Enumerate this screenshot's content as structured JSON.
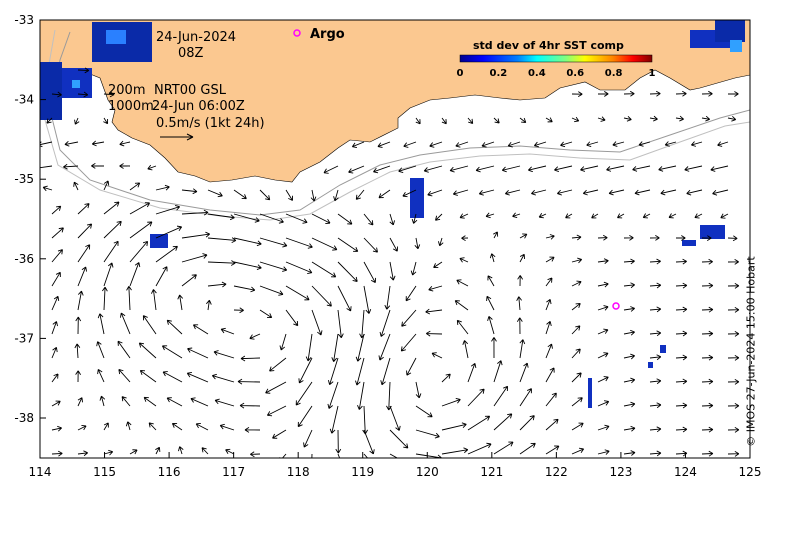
{
  "map": {
    "date_label": "24-Jun-2024",
    "time_label": "08Z",
    "contour_label_1": "200m",
    "contour_label_2": "1000m",
    "product_label": "NRT00 GSL",
    "product_time": "24-Jun 06:00Z",
    "scale_label": "0.5m/s (1kt 24h)",
    "argo_label": "Argo",
    "credit": "© IMOS 27-Jun-2024 15:00 Hobart",
    "land_color": "#fbc890",
    "argo_color": "#ff00ff",
    "lon_ticks": [
      "114",
      "115",
      "116",
      "117",
      "118",
      "119",
      "120",
      "121",
      "122",
      "123",
      "124",
      "125"
    ],
    "lat_ticks": [
      "-33",
      "-34",
      "-35",
      "-36",
      "-37",
      "-38"
    ],
    "colorbar": {
      "title": "std dev of 4hr SST comp",
      "ticks": [
        "0",
        "0.2",
        "0.4",
        "0.6",
        "0.8",
        "1"
      ],
      "colors": [
        "#00008f",
        "#0000ff",
        "#0080ff",
        "#00ffff",
        "#80ff80",
        "#ffff00",
        "#ff8000",
        "#ff0000",
        "#800000"
      ]
    }
  }
}
